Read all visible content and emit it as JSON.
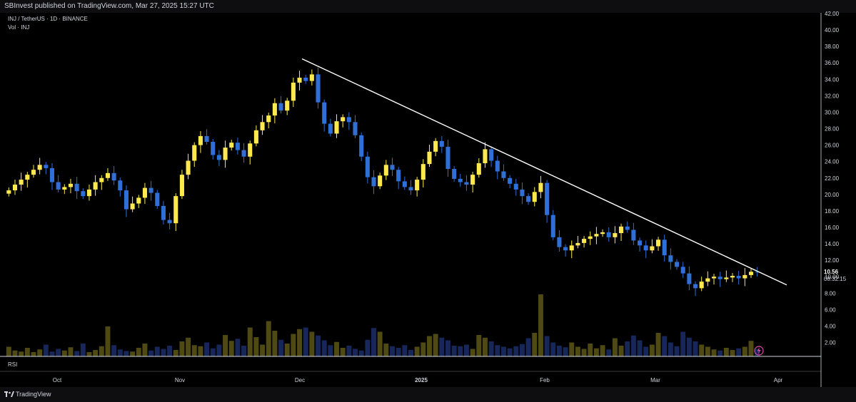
{
  "header": {
    "publish_text": "SBInvest published on TradingView.com, Mar 27, 2025 15:27 UTC"
  },
  "legend": {
    "symbol_line": "INJ / TetherUS · 1D · BINANCE",
    "volume_line": "Vol · INJ"
  },
  "rsi_label": "RSI",
  "footer": {
    "brand": "TradingView"
  },
  "colors": {
    "up": "#ffe94d",
    "down": "#2f6fd6",
    "vol_up": "#4f4a14",
    "vol_down": "#18275a",
    "trendline": "#ffffff",
    "background": "#000000"
  },
  "chart_data": {
    "type": "candlestick",
    "title": "INJ / TetherUS · 1D · BINANCE",
    "y_axis": {
      "ticks": [
        "2.00",
        "4.00",
        "6.00",
        "8.00",
        "10.00",
        "12.00",
        "14.00",
        "16.00",
        "18.00",
        "20.00",
        "22.00",
        "24.00",
        "26.00",
        "28.00",
        "30.00",
        "32.00",
        "34.00",
        "36.00",
        "38.00",
        "40.00",
        "42.00"
      ],
      "range": [
        0,
        42
      ]
    },
    "x_axis": {
      "ticks": [
        "Oct",
        "Nov",
        "Dec",
        "2025",
        "Feb",
        "Mar",
        "Apr"
      ]
    },
    "last_price": "10.56",
    "countdown": "08:32:15",
    "close_series": [
      20.5,
      21.2,
      21.8,
      22.4,
      23.0,
      23.6,
      23.2,
      21.5,
      20.6,
      20.9,
      21.3,
      20.4,
      19.8,
      20.6,
      21.5,
      22.0,
      22.6,
      21.7,
      20.5,
      18.2,
      18.9,
      19.6,
      20.8,
      20.2,
      18.6,
      16.9,
      16.5,
      19.8,
      22.4,
      24.1,
      26.0,
      27.1,
      26.4,
      24.8,
      24.2,
      25.7,
      26.3,
      25.4,
      24.6,
      26.2,
      27.8,
      28.8,
      29.6,
      31.1,
      30.2,
      31.4,
      33.6,
      34.2,
      33.8,
      34.6,
      31.2,
      28.6,
      27.4,
      28.9,
      29.4,
      28.8,
      27.2,
      24.6,
      22.1,
      21.0,
      22.3,
      23.6,
      23.0,
      21.6,
      20.9,
      20.5,
      21.8,
      23.7,
      25.2,
      26.5,
      25.8,
      23.1,
      21.9,
      21.5,
      21.2,
      22.4,
      23.8,
      25.5,
      24.1,
      22.8,
      22.0,
      21.3,
      20.6,
      19.8,
      19.1,
      20.3,
      21.4,
      17.5,
      14.8,
      13.6,
      13.2,
      13.8,
      14.1,
      14.6,
      14.9,
      15.2,
      15.4,
      14.8,
      15.3,
      16.1,
      15.7,
      14.4,
      13.8,
      13.2,
      13.7,
      14.5,
      12.6,
      11.8,
      11.2,
      10.4,
      9.1,
      8.6,
      9.4,
      9.8,
      10.0,
      9.7,
      9.9,
      10.1,
      9.8,
      10.2,
      10.6,
      10.56
    ],
    "trendline": [
      [
        0.0,
        36.5
      ],
      [
        1.0,
        9.0
      ]
    ],
    "volume_series": [
      1.8,
      1.1,
      0.9,
      1.6,
      0.8,
      1.3,
      2.2,
      0.9,
      1.4,
      1.1,
      1.7,
      1.0,
      2.4,
      0.8,
      1.2,
      1.9,
      5.6,
      2.1,
      1.3,
      1.0,
      0.9,
      1.6,
      2.4,
      1.1,
      1.8,
      1.4,
      2.0,
      1.2,
      2.8,
      3.5,
      2.1,
      1.9,
      2.6,
      1.5,
      2.2,
      4.0,
      2.9,
      3.3,
      2.0,
      5.4,
      3.6,
      2.2,
      6.6,
      4.8,
      3.1,
      2.4,
      4.2,
      5.1,
      5.4,
      4.6,
      3.9,
      3.0,
      2.1,
      2.7,
      1.6,
      2.0,
      1.4,
      1.1,
      3.1,
      5.3,
      4.6,
      2.4,
      1.9,
      1.6,
      2.1,
      1.2,
      1.8,
      2.6,
      3.8,
      4.2,
      3.5,
      3.0,
      2.0,
      1.9,
      2.2,
      1.4,
      4.0,
      3.5,
      2.8,
      2.1,
      1.8,
      1.5,
      1.9,
      2.3,
      3.4,
      4.4,
      11.6,
      3.8,
      2.6,
      2.0,
      1.7,
      2.6,
      1.8,
      1.4,
      2.4,
      1.5,
      2.1,
      1.3,
      3.4,
      2.0,
      2.8,
      3.9,
      3.0,
      1.8,
      2.2,
      4.4,
      3.8,
      2.6,
      1.9,
      4.6,
      3.5,
      2.8,
      2.2,
      1.8,
      1.3,
      1.1,
      1.6,
      1.2,
      1.5,
      1.8,
      2.9,
      1.4
    ]
  }
}
